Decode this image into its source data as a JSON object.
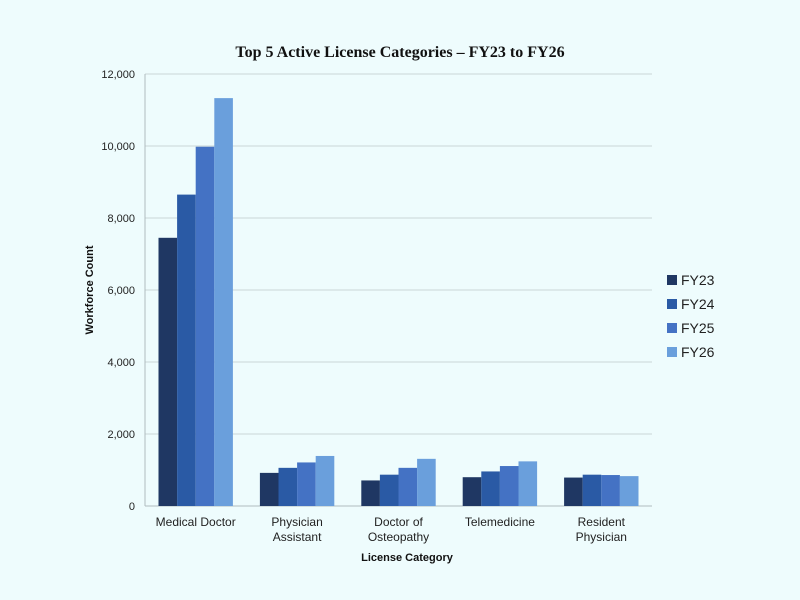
{
  "chart_data": {
    "type": "bar",
    "title": "Top 5 Active License Categories – FY23 to FY26",
    "xlabel": "License Category",
    "ylabel": "Workforce Count",
    "ylim": [
      0,
      12000
    ],
    "yticks": [
      0,
      2000,
      4000,
      6000,
      8000,
      10000,
      12000
    ],
    "ytick_labels": [
      "0",
      "2,000",
      "4,000",
      "6,000",
      "8,000",
      "10,000",
      "12,000"
    ],
    "grid": true,
    "legend_position": "right",
    "categories": [
      "Medical Doctor",
      "Physician Assistant",
      "Doctor of Osteopathy",
      "Telemedicine",
      "Resident Physician"
    ],
    "category_lines": [
      [
        "Medical Doctor"
      ],
      [
        "Physician",
        "Assistant"
      ],
      [
        "Doctor of",
        "Osteopathy"
      ],
      [
        "Telemedicine"
      ],
      [
        "Resident",
        "Physician"
      ]
    ],
    "series": [
      {
        "name": "FY23",
        "color": "#1f3763",
        "values": [
          7450,
          920,
          710,
          800,
          790
        ]
      },
      {
        "name": "FY24",
        "color": "#2a5aa5",
        "values": [
          8650,
          1060,
          870,
          960,
          870
        ]
      },
      {
        "name": "FY25",
        "color": "#4472c4",
        "values": [
          9980,
          1210,
          1060,
          1110,
          860
        ]
      },
      {
        "name": "FY26",
        "color": "#6a9fdc",
        "values": [
          11330,
          1390,
          1310,
          1240,
          830
        ]
      }
    ]
  }
}
